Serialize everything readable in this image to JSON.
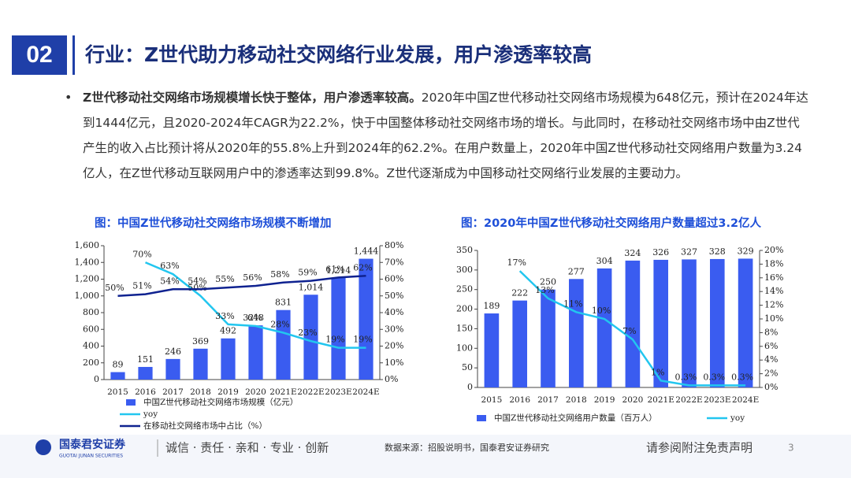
{
  "header": {
    "number": "02",
    "title": "行业：Z世代助力移动社交网络行业发展，用户渗透率较高"
  },
  "bullet": {
    "bold": "Z世代移动社交网络市场规模增长快于整体，用户渗透率较高。",
    "text": "2020年中国Z世代移动社交网络市场规模为648亿元，预计在2024年达到1444亿元，且2020-2024年CAGR为22.2%，快于中国整体移动社交网络市场的增长。与此同时，在移动社交网络市场中由Z世代产生的收入占比预计将从2020年的55.8%上升到2024年的62.2%。在用户数量上，2020年中国Z世代移动社交网络用户数量为3.24亿人，在Z世代移动互联网用户中的渗透率达到99.8%。Z世代逐渐成为中国移动社交网络行业发展的主要动力。"
  },
  "chart_data": [
    {
      "type": "bar",
      "title": "图：中国Z世代移动社交网络市场规模不断增加",
      "categories": [
        "2015",
        "2016",
        "2017",
        "2018",
        "2019",
        "2020",
        "2021E",
        "2022E",
        "2023E",
        "2024E"
      ],
      "series": [
        {
          "name": "中国Z世代移动社交网络市场规模（亿元）",
          "type": "bar",
          "color": "#3a5cf0",
          "values": [
            89,
            151,
            246,
            369,
            492,
            648,
            831,
            1014,
            1214,
            1444
          ],
          "value_labels": [
            "89",
            "151",
            "246",
            "369",
            "492",
            "648",
            "831",
            "1,014",
            "1,214",
            "1,444"
          ]
        },
        {
          "name": "yoy",
          "type": "line",
          "axis": "y2",
          "color": "#22c6ef",
          "values": [
            null,
            70,
            63,
            50,
            33,
            32,
            28,
            23,
            19,
            19
          ],
          "value_labels": [
            null,
            "70%",
            "63%",
            "50%",
            "33%",
            "32%",
            "28%",
            "23%",
            "19%",
            "19%"
          ]
        },
        {
          "name": "在移动社交网络市场中占比（%）",
          "type": "line",
          "axis": "y2",
          "color": "#0f2290",
          "values": [
            50,
            51,
            54,
            54,
            55,
            56,
            58,
            59,
            61,
            62
          ],
          "value_labels": [
            "50%",
            "51%",
            "54%",
            "54%",
            "55%",
            "56%",
            "58%",
            "59%",
            "61%",
            "62%"
          ]
        }
      ],
      "ylim": [
        0,
        1600
      ],
      "yticks": [
        0,
        200,
        400,
        600,
        800,
        {
          "value": 1000,
          "label": "1,000"
        },
        {
          "value": 1200,
          "label": "1,200"
        },
        {
          "value": 1400,
          "label": "1,400"
        },
        {
          "value": 1600,
          "label": "1,600"
        }
      ],
      "y2lim": [
        0,
        80
      ],
      "y2ticks": [
        {
          "value": 0,
          "label": "0%"
        },
        {
          "value": 10,
          "label": "10%"
        },
        {
          "value": 20,
          "label": "20%"
        },
        {
          "value": 30,
          "label": "30%"
        },
        {
          "value": 40,
          "label": "40%"
        },
        {
          "value": 50,
          "label": "50%"
        },
        {
          "value": 60,
          "label": "60%"
        },
        {
          "value": 70,
          "label": "70%"
        },
        {
          "value": 80,
          "label": "80%"
        }
      ]
    },
    {
      "type": "bar",
      "title": "图：2020年中国Z世代移动社交网络用户数量超过3.2亿人",
      "categories": [
        "2015",
        "2016",
        "2017",
        "2018",
        "2019",
        "2020",
        "2021E",
        "2022E",
        "2023E",
        "2024E"
      ],
      "series": [
        {
          "name": "中国Z世代移动社交网络用户数量（百万人）",
          "type": "bar",
          "color": "#3a5cf0",
          "values": [
            189,
            222,
            250,
            277,
            304,
            324,
            326,
            327,
            328,
            329
          ]
        },
        {
          "name": "yoy",
          "type": "line",
          "axis": "y2",
          "color": "#22c6ef",
          "values": [
            null,
            17,
            13,
            11,
            10,
            7,
            1,
            0.3,
            0.3,
            0.3
          ],
          "value_labels": [
            null,
            "17%",
            "13%",
            "11%",
            "10%",
            "7%",
            "1%",
            "0.3%",
            "0.3%",
            "0.3%"
          ]
        }
      ],
      "ylim": [
        0,
        350
      ],
      "yticks": [
        0,
        50,
        100,
        150,
        200,
        250,
        300,
        350
      ],
      "y2lim": [
        0,
        20
      ],
      "y2ticks": [
        {
          "value": 0,
          "label": "0%"
        },
        {
          "value": 2,
          "label": "2%"
        },
        {
          "value": 4,
          "label": "4%"
        },
        {
          "value": 6,
          "label": "6%"
        },
        {
          "value": 8,
          "label": "8%"
        },
        {
          "value": 10,
          "label": "10%"
        },
        {
          "value": 12,
          "label": "12%"
        },
        {
          "value": 14,
          "label": "14%"
        },
        {
          "value": 16,
          "label": "16%"
        },
        {
          "value": 18,
          "label": "18%"
        },
        {
          "value": 20,
          "label": "20%"
        }
      ]
    }
  ],
  "footer": {
    "logo": "国泰君安证券",
    "logo_en": "GUOTAI JUNAN SECURITIES",
    "slogan": "诚信 · 责任 · 亲和 · 专业 · 创新",
    "source": "数据来源：招股说明书，国泰君安证券研究",
    "disclaimer": "请参阅附注免责声明",
    "page": "3"
  }
}
